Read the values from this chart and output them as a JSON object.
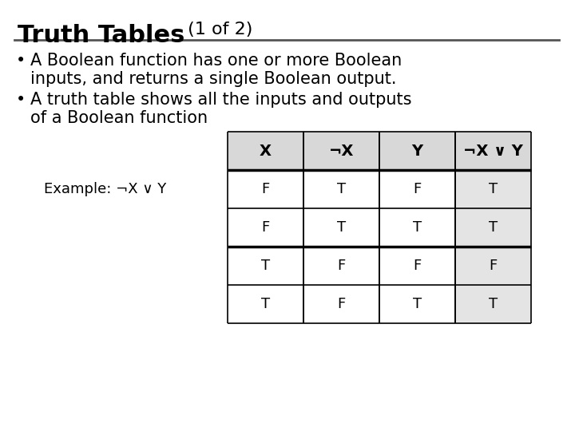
{
  "title_bold": "Truth Tables",
  "title_normal": " (1 of 2)",
  "bullet1_line1": "A Boolean function has one or more Boolean",
  "bullet1_line2": "inputs, and returns a single Boolean output.",
  "bullet2_line1": "A truth table shows all the inputs and outputs",
  "bullet2_line2": "of a Boolean function",
  "example_label": "Example: ¬X ∨ Y",
  "col_headers": [
    "X",
    "¬X",
    "Y",
    "¬X ∨ Y"
  ],
  "table_data": [
    [
      "F",
      "T",
      "F",
      "T"
    ],
    [
      "F",
      "T",
      "T",
      "T"
    ],
    [
      "T",
      "F",
      "F",
      "F"
    ],
    [
      "T",
      "F",
      "T",
      "T"
    ]
  ],
  "header_bg": "#d8d8d8",
  "last_col_bg": "#e4e4e4",
  "bg_color": "#ffffff",
  "title_color": "#000000",
  "divider_color": "#555555",
  "table_line_color": "#000000",
  "title_fontsize": 22,
  "subtitle_fontsize": 16,
  "bullet_fontsize": 15,
  "table_header_fontsize": 14,
  "table_data_fontsize": 13,
  "example_fontsize": 13
}
